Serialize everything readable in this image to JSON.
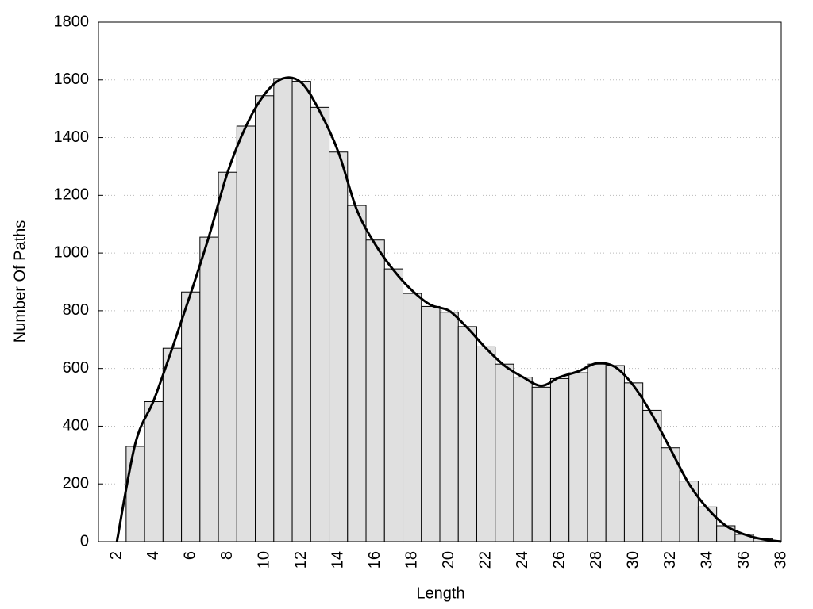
{
  "chart_data": {
    "type": "histogram",
    "xlabel": "Length",
    "ylabel": "Number Of Paths",
    "bins": [
      2.5,
      3.5,
      4.5,
      5.5,
      6.5,
      7.5,
      8.5,
      9.5,
      10.5,
      11.5,
      12.5,
      13.5,
      14.5,
      15.5,
      16.5,
      17.5,
      18.5,
      19.5,
      20.5,
      21.5,
      22.5,
      23.5,
      24.5,
      25.5,
      26.5,
      27.5,
      28.5,
      29.5,
      30.5,
      31.5,
      32.5,
      33.5,
      34.5,
      35.5,
      36.5,
      37.5
    ],
    "values": [
      330,
      485,
      670,
      865,
      1055,
      1280,
      1440,
      1545,
      1605,
      1595,
      1505,
      1350,
      1165,
      1045,
      945,
      860,
      815,
      795,
      745,
      675,
      615,
      570,
      535,
      565,
      585,
      615,
      610,
      550,
      455,
      325,
      210,
      120,
      55,
      25,
      10
    ],
    "color": "#e0e0e0",
    "line": {
      "color": "#000000",
      "x": [
        2,
        3,
        4,
        5,
        6,
        7,
        8,
        9,
        10,
        11,
        12,
        13,
        14,
        15,
        16,
        17,
        18,
        19,
        20,
        21,
        22,
        23,
        24,
        25,
        26,
        27,
        28,
        29,
        30,
        31,
        32,
        33,
        34,
        35,
        36,
        37,
        38
      ],
      "values": [
        0,
        340,
        490,
        670,
        860,
        1060,
        1280,
        1440,
        1550,
        1605,
        1590,
        1490,
        1350,
        1150,
        1030,
        940,
        870,
        820,
        800,
        740,
        670,
        610,
        570,
        540,
        570,
        590,
        618,
        605,
        540,
        440,
        320,
        200,
        115,
        55,
        25,
        8,
        0
      ]
    },
    "xlim": [
      1,
      38
    ],
    "xticks": [
      2,
      4,
      6,
      8,
      10,
      12,
      14,
      16,
      18,
      20,
      22,
      24,
      26,
      28,
      30,
      32,
      34,
      36,
      38
    ],
    "ylim": [
      0,
      1800
    ],
    "yticks": [
      0,
      200,
      400,
      600,
      800,
      1000,
      1200,
      1400,
      1600,
      1800
    ],
    "grid": true
  }
}
